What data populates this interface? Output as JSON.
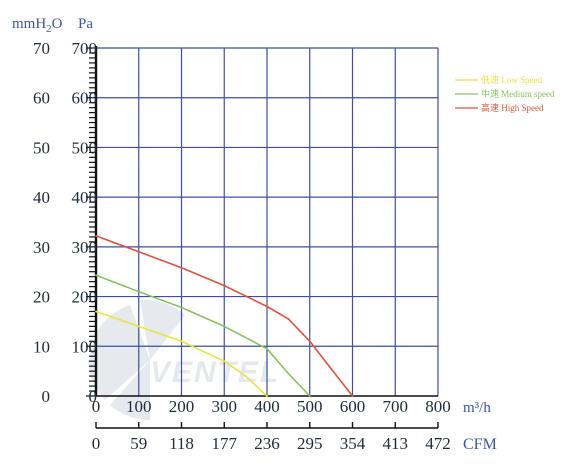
{
  "chart_data": {
    "type": "line",
    "units": {
      "y_left": "mmH2O",
      "y_right": "Pa",
      "x_top": "m³/h",
      "x_bottom": "CFM"
    },
    "y_left_ticks": [
      0,
      10,
      20,
      30,
      40,
      50,
      60,
      70
    ],
    "y_right_ticks": [
      0,
      100,
      200,
      300,
      400,
      500,
      600,
      700
    ],
    "x_ticks": [
      0,
      100,
      200,
      300,
      400,
      500,
      600,
      700,
      800
    ],
    "cfm_ticks": [
      0,
      59,
      118,
      177,
      236,
      295,
      354,
      413,
      472
    ],
    "xlim": [
      0,
      800
    ],
    "ylim": [
      0,
      700
    ],
    "grid": true,
    "legend_position": "top-right",
    "watermark": "VENTEL",
    "series": [
      {
        "name": "Low Speed",
        "label_cn": "低速",
        "color": "#e6e640",
        "points": [
          [
            0,
            170
          ],
          [
            100,
            140
          ],
          [
            200,
            110
          ],
          [
            300,
            70
          ],
          [
            350,
            40
          ],
          [
            400,
            0
          ]
        ]
      },
      {
        "name": "Medium speed",
        "label_cn": "中速",
        "color": "#8ac060",
        "points": [
          [
            0,
            243
          ],
          [
            100,
            210
          ],
          [
            200,
            178
          ],
          [
            300,
            140
          ],
          [
            400,
            95
          ],
          [
            450,
            45
          ],
          [
            500,
            0
          ]
        ]
      },
      {
        "name": "High Speed",
        "label_cn": "高速",
        "color": "#e0533a",
        "points": [
          [
            0,
            322
          ],
          [
            100,
            290
          ],
          [
            200,
            258
          ],
          [
            300,
            222
          ],
          [
            400,
            180
          ],
          [
            450,
            155
          ],
          [
            500,
            110
          ],
          [
            550,
            55
          ],
          [
            600,
            0
          ]
        ]
      }
    ]
  }
}
